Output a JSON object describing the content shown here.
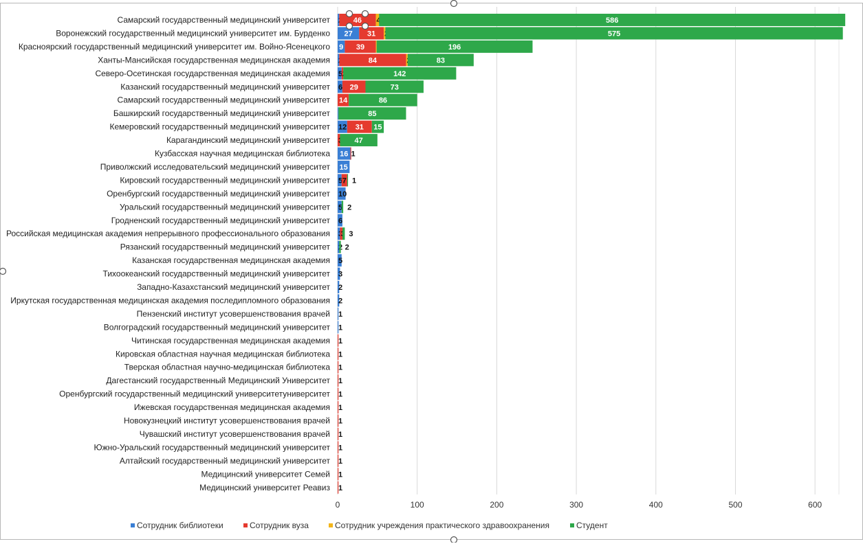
{
  "chart_data": {
    "type": "bar",
    "orientation": "horizontal",
    "stacked": true,
    "grid": true,
    "legend_position": "bottom",
    "xlim": [
      0,
      640
    ],
    "xticks": [
      "0",
      "100",
      "200",
      "300",
      "400",
      "500",
      "600"
    ],
    "xtick_values": [
      0,
      100,
      200,
      300,
      400,
      500,
      600
    ],
    "categories": [
      "Самарский государственный медицинский университет",
      "Воронежский государственный медицинский университет им. Бурденко",
      "Красноярский государственный медицинский университет им. Войно-Ясенецкого",
      "Ханты-Мансийская государственная медицинская академия",
      "Северо-Осетинская государственная медицинская академия",
      "Казанский государственный медицинский университет",
      "Самарский государственный медицинский университет",
      "Башкирский государственный медицинский университет",
      "Кемеровский государственный медицинский университет",
      "Карагандинский медицинский университет",
      "Кузбасская научная медицинская библиотека",
      "Приволжский исследовательский медицинский университет",
      "Кировский государственный медицинский университет",
      "Оренбургский государственный медицинский университет",
      "Уральский государственный медицинский университет",
      "Гродненский государственный медицинский университет",
      "Российская медицинская академия непрерывного профессионального образования",
      "Рязанский государственный медицинский университет",
      "Казанская государственная медицинская академия",
      "Тихоокеанский государственный медицинский университет",
      "Западно-Казахстанский медицинский университет",
      "Иркутская государственная медицинская академия последипломного образования",
      "Пензенский институт усовершенствования врачей",
      "Волгоградский государственный медицинский университет",
      "Читинская государственная медицинская академия",
      "Кировская областная научная медицинская библиотека",
      "Тверская областная научно-медицинская библиотека",
      "Дагестанский государственный Медицинский Университет",
      "Оренбургский государственный  медицинский университетуниверситет",
      "Ижевская государственная медицинская академия",
      "Новокузнецкий институт усовершенствования врачей",
      "Чувашский институт усовершенствования врачей",
      "Южно-Уральский государственный медицинский университет",
      "Алтайский государственный медицинский университет",
      "Медицинский университет Семей",
      "Медицинский университет Реавиз"
    ],
    "series": [
      {
        "name": "Сотрудник библиотеки",
        "color": "#3a7fd5",
        "values": [
          2,
          27,
          9,
          2,
          5,
          6,
          0,
          1,
          12,
          0,
          16,
          15,
          5,
          10,
          5,
          6,
          3,
          2,
          5,
          3,
          2,
          2,
          1,
          1,
          0,
          0,
          0,
          0,
          0,
          0,
          0,
          0,
          0,
          0,
          0,
          0
        ]
      },
      {
        "name": "Сотрудник вуза",
        "color": "#e53a2f",
        "values": [
          46,
          31,
          39,
          84,
          2,
          29,
          14,
          0,
          31,
          3,
          1,
          0,
          7,
          0,
          0,
          0,
          3,
          0,
          0,
          0,
          0,
          0,
          0,
          0,
          1,
          1,
          1,
          1,
          1,
          1,
          1,
          1,
          1,
          1,
          1,
          1
        ]
      },
      {
        "name": "Сотрудник учреждения практического здравоохранения",
        "color": "#f3b51b",
        "values": [
          4,
          2,
          1,
          2,
          0,
          0,
          0,
          0,
          0,
          0,
          0,
          0,
          0,
          0,
          0,
          0,
          0,
          0,
          0,
          0,
          0,
          0,
          0,
          0,
          0,
          0,
          0,
          0,
          0,
          0,
          0,
          0,
          0,
          0,
          0,
          0
        ]
      },
      {
        "name": "Студент",
        "color": "#2ea84a",
        "values": [
          586,
          575,
          196,
          83,
          142,
          73,
          86,
          85,
          15,
          47,
          0,
          0,
          1,
          0,
          2,
          0,
          3,
          2,
          0,
          0,
          0,
          0,
          0,
          0,
          0,
          0,
          0,
          0,
          0,
          0,
          0,
          0,
          0,
          0,
          0,
          0
        ]
      }
    ]
  }
}
